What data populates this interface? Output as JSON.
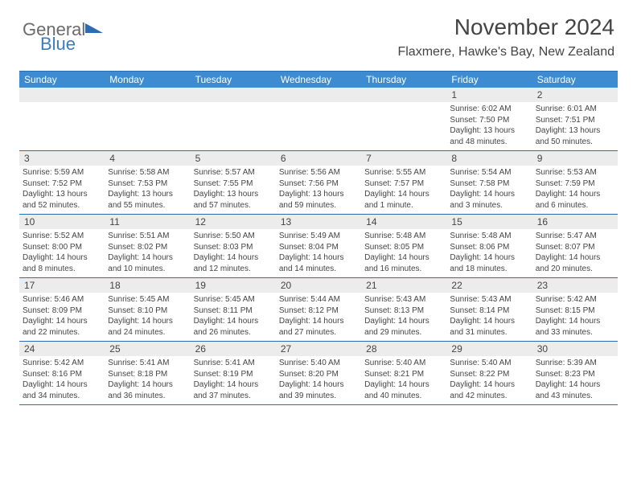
{
  "brand": {
    "part1": "General",
    "part2": "Blue"
  },
  "title": "November 2024",
  "location": "Flaxmere, Hawke's Bay, New Zealand",
  "colors": {
    "header_bg": "#3d8bd1",
    "border": "#2d6cb0",
    "daynum_bg": "#ececec",
    "text": "#444444",
    "logo_gray": "#6b6b6b",
    "logo_blue": "#3b7bbf"
  },
  "dow": [
    "Sunday",
    "Monday",
    "Tuesday",
    "Wednesday",
    "Thursday",
    "Friday",
    "Saturday"
  ],
  "weeks": [
    [
      null,
      null,
      null,
      null,
      null,
      {
        "d": "1",
        "sr": "6:02 AM",
        "ss": "7:50 PM",
        "dl": "13 hours and 48 minutes."
      },
      {
        "d": "2",
        "sr": "6:01 AM",
        "ss": "7:51 PM",
        "dl": "13 hours and 50 minutes."
      }
    ],
    [
      {
        "d": "3",
        "sr": "5:59 AM",
        "ss": "7:52 PM",
        "dl": "13 hours and 52 minutes."
      },
      {
        "d": "4",
        "sr": "5:58 AM",
        "ss": "7:53 PM",
        "dl": "13 hours and 55 minutes."
      },
      {
        "d": "5",
        "sr": "5:57 AM",
        "ss": "7:55 PM",
        "dl": "13 hours and 57 minutes."
      },
      {
        "d": "6",
        "sr": "5:56 AM",
        "ss": "7:56 PM",
        "dl": "13 hours and 59 minutes."
      },
      {
        "d": "7",
        "sr": "5:55 AM",
        "ss": "7:57 PM",
        "dl": "14 hours and 1 minute."
      },
      {
        "d": "8",
        "sr": "5:54 AM",
        "ss": "7:58 PM",
        "dl": "14 hours and 3 minutes."
      },
      {
        "d": "9",
        "sr": "5:53 AM",
        "ss": "7:59 PM",
        "dl": "14 hours and 6 minutes."
      }
    ],
    [
      {
        "d": "10",
        "sr": "5:52 AM",
        "ss": "8:00 PM",
        "dl": "14 hours and 8 minutes."
      },
      {
        "d": "11",
        "sr": "5:51 AM",
        "ss": "8:02 PM",
        "dl": "14 hours and 10 minutes."
      },
      {
        "d": "12",
        "sr": "5:50 AM",
        "ss": "8:03 PM",
        "dl": "14 hours and 12 minutes."
      },
      {
        "d": "13",
        "sr": "5:49 AM",
        "ss": "8:04 PM",
        "dl": "14 hours and 14 minutes."
      },
      {
        "d": "14",
        "sr": "5:48 AM",
        "ss": "8:05 PM",
        "dl": "14 hours and 16 minutes."
      },
      {
        "d": "15",
        "sr": "5:48 AM",
        "ss": "8:06 PM",
        "dl": "14 hours and 18 minutes."
      },
      {
        "d": "16",
        "sr": "5:47 AM",
        "ss": "8:07 PM",
        "dl": "14 hours and 20 minutes."
      }
    ],
    [
      {
        "d": "17",
        "sr": "5:46 AM",
        "ss": "8:09 PM",
        "dl": "14 hours and 22 minutes."
      },
      {
        "d": "18",
        "sr": "5:45 AM",
        "ss": "8:10 PM",
        "dl": "14 hours and 24 minutes."
      },
      {
        "d": "19",
        "sr": "5:45 AM",
        "ss": "8:11 PM",
        "dl": "14 hours and 26 minutes."
      },
      {
        "d": "20",
        "sr": "5:44 AM",
        "ss": "8:12 PM",
        "dl": "14 hours and 27 minutes."
      },
      {
        "d": "21",
        "sr": "5:43 AM",
        "ss": "8:13 PM",
        "dl": "14 hours and 29 minutes."
      },
      {
        "d": "22",
        "sr": "5:43 AM",
        "ss": "8:14 PM",
        "dl": "14 hours and 31 minutes."
      },
      {
        "d": "23",
        "sr": "5:42 AM",
        "ss": "8:15 PM",
        "dl": "14 hours and 33 minutes."
      }
    ],
    [
      {
        "d": "24",
        "sr": "5:42 AM",
        "ss": "8:16 PM",
        "dl": "14 hours and 34 minutes."
      },
      {
        "d": "25",
        "sr": "5:41 AM",
        "ss": "8:18 PM",
        "dl": "14 hours and 36 minutes."
      },
      {
        "d": "26",
        "sr": "5:41 AM",
        "ss": "8:19 PM",
        "dl": "14 hours and 37 minutes."
      },
      {
        "d": "27",
        "sr": "5:40 AM",
        "ss": "8:20 PM",
        "dl": "14 hours and 39 minutes."
      },
      {
        "d": "28",
        "sr": "5:40 AM",
        "ss": "8:21 PM",
        "dl": "14 hours and 40 minutes."
      },
      {
        "d": "29",
        "sr": "5:40 AM",
        "ss": "8:22 PM",
        "dl": "14 hours and 42 minutes."
      },
      {
        "d": "30",
        "sr": "5:39 AM",
        "ss": "8:23 PM",
        "dl": "14 hours and 43 minutes."
      }
    ]
  ],
  "labels": {
    "sunrise": "Sunrise: ",
    "sunset": "Sunset: ",
    "daylight": "Daylight: "
  }
}
